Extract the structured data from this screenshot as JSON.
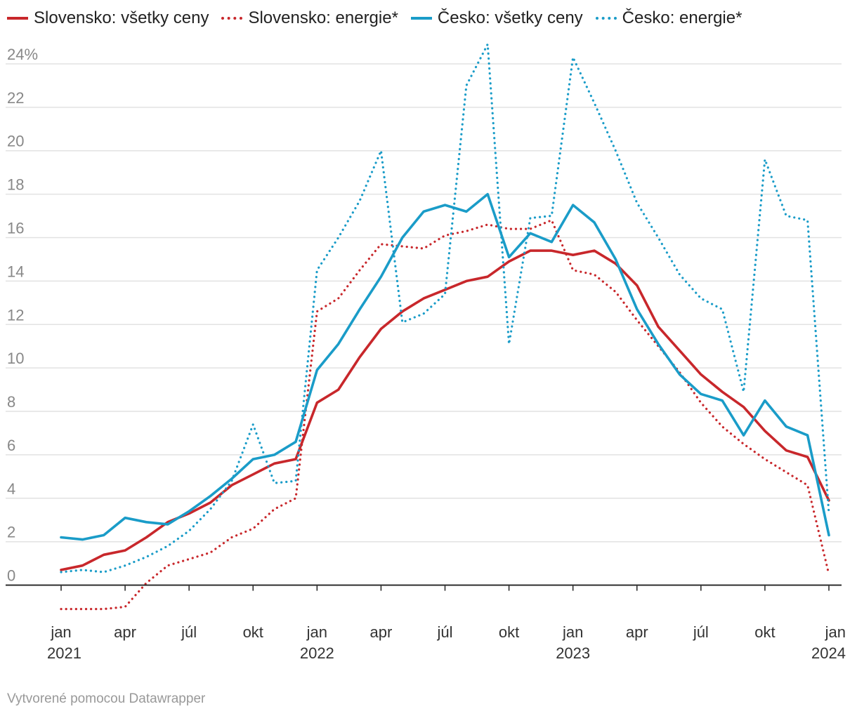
{
  "legend": [
    {
      "label": "Slovensko: všetky ceny",
      "color": "#c8272b",
      "style": "solid"
    },
    {
      "label": "Slovensko: energie*",
      "color": "#c8272b",
      "style": "dotted"
    },
    {
      "label": "Česko: všetky ceny",
      "color": "#1a9cc8",
      "style": "solid"
    },
    {
      "label": "Česko: energie*",
      "color": "#1a9cc8",
      "style": "dotted"
    }
  ],
  "footer": "Vytvorené pomocou Datawrapper",
  "chart_data": {
    "type": "line",
    "x_start": "2021-01",
    "x_end": "2024-01",
    "ylim": [
      -1.5,
      25
    ],
    "y_ticks": [
      0,
      2,
      4,
      6,
      8,
      10,
      12,
      14,
      16,
      18,
      20,
      22,
      24
    ],
    "y_tick_labels": [
      "0",
      "2",
      "4",
      "6",
      "8",
      "10",
      "12",
      "14",
      "16",
      "18",
      "20",
      "22",
      "24%"
    ],
    "x_ticks": [
      {
        "month": "2021-01",
        "label": "jan",
        "year": "2021"
      },
      {
        "month": "2021-04",
        "label": "apr",
        "year": ""
      },
      {
        "month": "2021-07",
        "label": "júl",
        "year": ""
      },
      {
        "month": "2021-10",
        "label": "okt",
        "year": ""
      },
      {
        "month": "2022-01",
        "label": "jan",
        "year": "2022"
      },
      {
        "month": "2022-04",
        "label": "apr",
        "year": ""
      },
      {
        "month": "2022-07",
        "label": "júl",
        "year": ""
      },
      {
        "month": "2022-10",
        "label": "okt",
        "year": ""
      },
      {
        "month": "2023-01",
        "label": "jan",
        "year": "2023"
      },
      {
        "month": "2023-04",
        "label": "apr",
        "year": ""
      },
      {
        "month": "2023-07",
        "label": "júl",
        "year": ""
      },
      {
        "month": "2023-10",
        "label": "okt",
        "year": ""
      },
      {
        "month": "2024-01",
        "label": "jan",
        "year": "2024"
      }
    ],
    "series": [
      {
        "name": "Slovensko: všetky ceny",
        "color": "#c8272b",
        "style": "solid",
        "values": [
          0.7,
          0.9,
          1.4,
          1.6,
          2.2,
          2.9,
          3.3,
          3.8,
          4.6,
          5.1,
          5.6,
          5.8,
          8.4,
          9.0,
          10.5,
          11.8,
          12.6,
          13.2,
          13.6,
          14.0,
          14.2,
          14.9,
          15.4,
          15.4,
          15.2,
          15.4,
          14.8,
          13.8,
          11.9,
          10.8,
          9.7,
          8.9,
          8.2,
          7.1,
          6.2,
          5.9,
          3.9
        ]
      },
      {
        "name": "Slovensko: energie*",
        "color": "#c8272b",
        "style": "dotted",
        "values": [
          -1.1,
          -1.1,
          -1.1,
          -1.0,
          0.1,
          0.9,
          1.2,
          1.5,
          2.2,
          2.6,
          3.5,
          4.0,
          12.6,
          13.2,
          14.5,
          15.7,
          15.6,
          15.5,
          16.1,
          16.3,
          16.6,
          16.4,
          16.4,
          16.8,
          14.5,
          14.3,
          13.5,
          12.2,
          11.0,
          9.8,
          8.4,
          7.3,
          6.5,
          5.8,
          5.2,
          4.6,
          0.5
        ]
      },
      {
        "name": "Česko: všetky ceny",
        "color": "#1a9cc8",
        "style": "solid",
        "values": [
          2.2,
          2.1,
          2.3,
          3.1,
          2.9,
          2.8,
          3.4,
          4.1,
          4.9,
          5.8,
          6.0,
          6.6,
          9.9,
          11.1,
          12.7,
          14.2,
          16.0,
          17.2,
          17.5,
          17.2,
          18.0,
          15.1,
          16.2,
          15.8,
          17.5,
          16.7,
          15.0,
          12.7,
          11.1,
          9.7,
          8.8,
          8.5,
          6.9,
          8.5,
          7.3,
          6.9,
          2.3
        ]
      },
      {
        "name": "Česko: energie*",
        "color": "#1a9cc8",
        "style": "dotted",
        "values": [
          0.6,
          0.7,
          0.6,
          0.9,
          1.3,
          1.8,
          2.5,
          3.5,
          4.8,
          7.4,
          4.7,
          4.8,
          14.5,
          16.0,
          17.7,
          20.0,
          12.1,
          12.5,
          13.4,
          23.0,
          24.9,
          11.1,
          16.9,
          17.0,
          24.3,
          22.2,
          20.0,
          17.6,
          16.0,
          14.3,
          13.2,
          12.7,
          8.9,
          19.6,
          17.0,
          16.8,
          3.3
        ]
      }
    ]
  }
}
